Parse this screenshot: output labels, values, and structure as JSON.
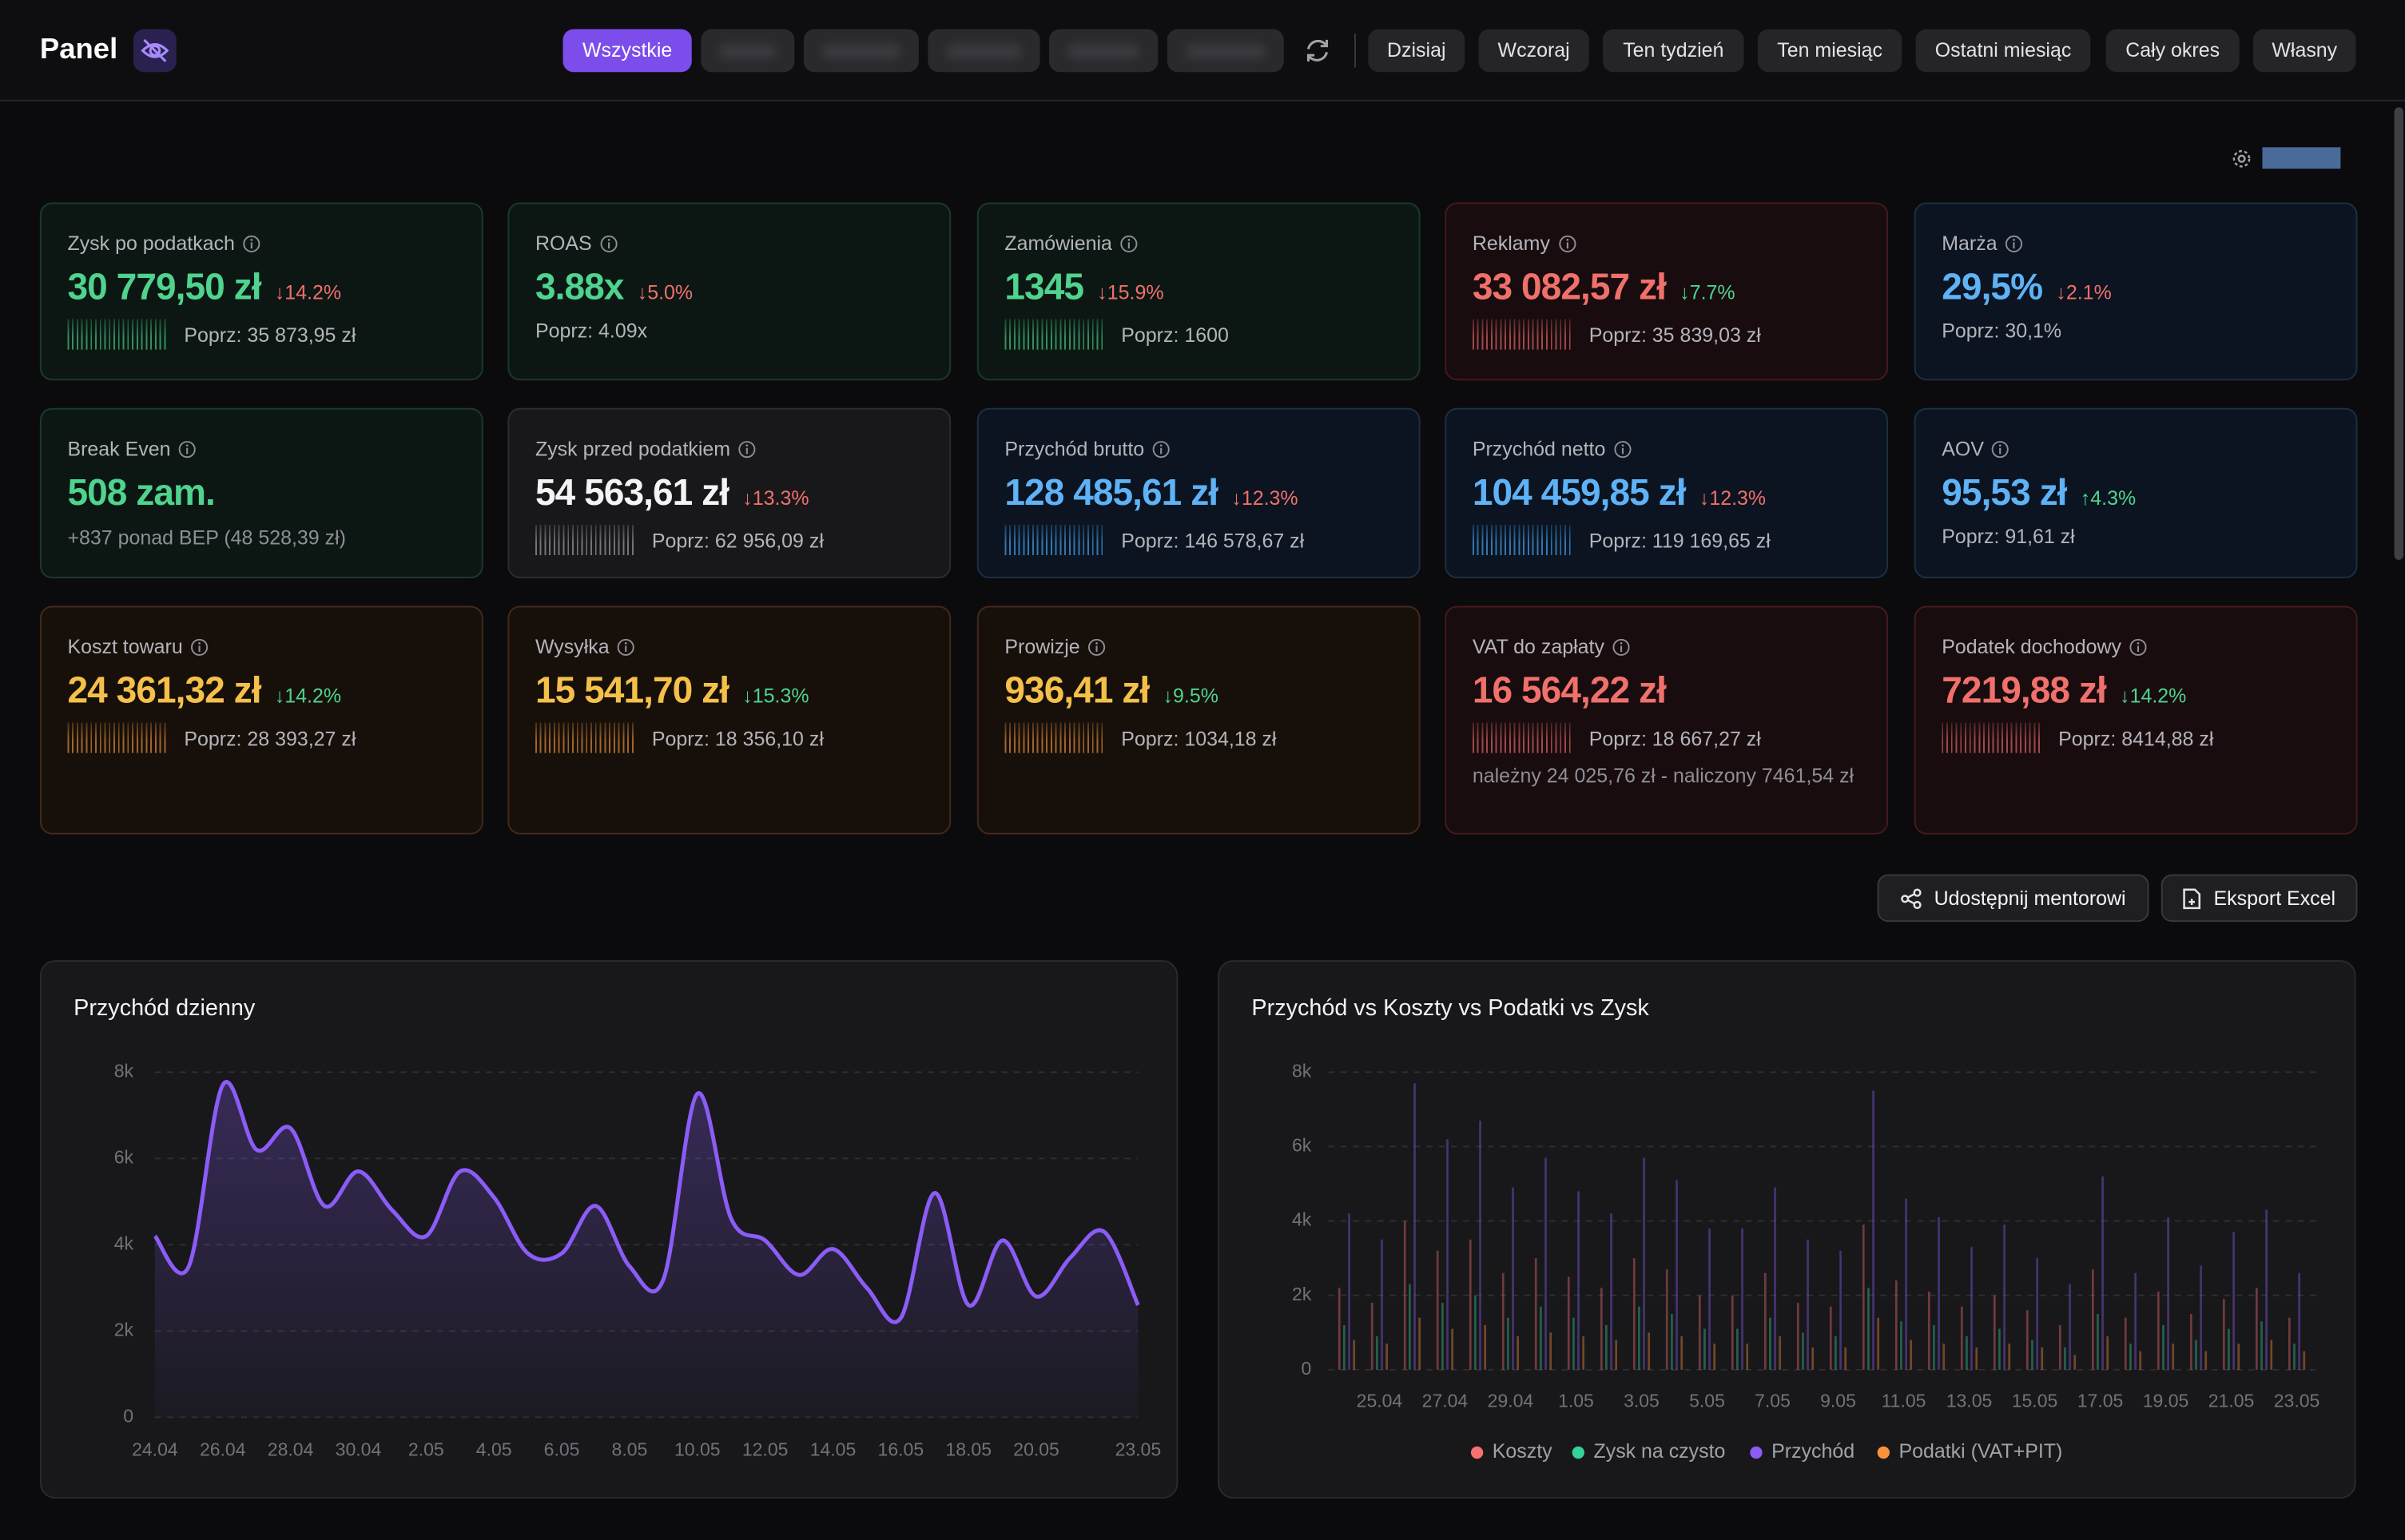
{
  "header": {
    "title": "Panel",
    "tabs": [
      "Wszystkie"
    ],
    "periods": [
      "Dzisiaj",
      "Wczoraj",
      "Ten tydzień",
      "Ten miesiąc",
      "Ostatni miesiąc",
      "Cały okres",
      "Własny"
    ]
  },
  "kpis": [
    {
      "label": "Zysk po podatkach",
      "value": "30 779,50 zł",
      "change": "↓14.2%",
      "previous": "Poprz: 35 873,95 zł"
    },
    {
      "label": "ROAS",
      "value": "3.88x",
      "change": "↓5.0%",
      "previous": "Poprz: 4.09x"
    },
    {
      "label": "Zamówienia",
      "value": "1345",
      "change": "↓15.9%",
      "previous": "Poprz: 1600"
    },
    {
      "label": "Reklamy",
      "value": "33 082,57 zł",
      "change": "↓7.7%",
      "previous": "Poprz: 35 839,03 zł"
    },
    {
      "label": "Marża",
      "value": "29,5%",
      "change": "↓2.1%",
      "previous": "Poprz: 30,1%"
    },
    {
      "label": "Break Even",
      "value": "508 zam.",
      "note": "+837 ponad BEP (48 528,39 zł)"
    },
    {
      "label": "Zysk przed podatkiem",
      "value": "54 563,61 zł",
      "change": "↓13.3%",
      "previous": "Poprz: 62 956,09 zł"
    },
    {
      "label": "Przychód brutto",
      "value": "128 485,61 zł",
      "change": "↓12.3%",
      "previous": "Poprz: 146 578,67 zł"
    },
    {
      "label": "Przychód netto",
      "value": "104 459,85 zł",
      "change": "↓12.3%",
      "previous": "Poprz: 119 169,65 zł"
    },
    {
      "label": "AOV",
      "value": "95,53 zł",
      "change": "↑4.3%",
      "previous": "Poprz: 91,61 zł"
    },
    {
      "label": "Koszt towaru",
      "value": "24 361,32 zł",
      "change": "↓14.2%",
      "previous": "Poprz: 28 393,27 zł"
    },
    {
      "label": "Wysyłka",
      "value": "15 541,70 zł",
      "change": "↓15.3%",
      "previous": "Poprz: 18 356,10 zł"
    },
    {
      "label": "Prowizje",
      "value": "936,41 zł",
      "change": "↓9.5%",
      "previous": "Poprz: 1034,18 zł"
    },
    {
      "label": "VAT do zapłaty",
      "value": "16 564,22 zł",
      "previous": "Poprz: 18 667,27 zł",
      "note": "należny 24 025,76 zł - naliczony 7461,54 zł"
    },
    {
      "label": "Podatek dochodowy",
      "value": "7219,88 zł",
      "change": "↓14.2%",
      "previous": "Poprz: 8414,88 zł"
    }
  ],
  "actions": [
    "Udostępnij mentorowi",
    "Eksport Excel"
  ],
  "chart_data": [
    {
      "type": "line",
      "title": "Przychód dzienny",
      "categories": [
        "24.04",
        null,
        "26.04",
        null,
        "28.04",
        null,
        "30.04",
        null,
        "2.05",
        null,
        "4.05",
        null,
        "6.05",
        null,
        "8.05",
        null,
        "10.05",
        null,
        "12.05",
        null,
        "14.05",
        null,
        "16.05",
        null,
        "18.05",
        null,
        "20.05",
        null,
        null,
        "23.05"
      ],
      "values": [
        4200,
        3500,
        7700,
        6200,
        6700,
        4900,
        5700,
        4800,
        4200,
        5700,
        5100,
        3800,
        3800,
        4900,
        3500,
        3200,
        7500,
        4600,
        4100,
        3300,
        3900,
        3000,
        2300,
        5200,
        2600,
        4100,
        2800,
        3700,
        4300,
        2600
      ],
      "color": "#8b5cf6",
      "ylim": [
        0,
        8000
      ],
      "yticks": [
        0,
        {
          "value": 2000,
          "label": "2k"
        },
        {
          "value": 4000,
          "label": "4k"
        },
        {
          "value": 6000,
          "label": "6k"
        },
        {
          "value": 8000,
          "label": "8k"
        }
      ],
      "grid": true
    },
    {
      "type": "bar",
      "title": "Przychód vs Koszty vs Podatki vs Zysk",
      "categories": [
        null,
        "25.04",
        null,
        "27.04",
        null,
        "29.04",
        null,
        "1.05",
        null,
        "3.05",
        null,
        "5.05",
        null,
        "7.05",
        null,
        "9.05",
        null,
        "11.05",
        null,
        "13.05",
        null,
        "15.05",
        null,
        "17.05",
        null,
        "19.05",
        null,
        "21.05",
        null,
        "23.05"
      ],
      "series": [
        {
          "name": "Koszty",
          "color": "#f87171",
          "values": [
            2200,
            1800,
            4000,
            3200,
            3500,
            2600,
            3000,
            2500,
            2200,
            3000,
            2700,
            2000,
            2000,
            2600,
            1800,
            1700,
            3900,
            2400,
            2100,
            1700,
            2000,
            1600,
            1200,
            2700,
            1400,
            2100,
            1500,
            1900,
            2200,
            1400
          ]
        },
        {
          "name": "Zysk na czysto",
          "color": "#34d399",
          "values": [
            1200,
            900,
            2300,
            1800,
            2000,
            1400,
            1700,
            1400,
            1200,
            1700,
            1500,
            1100,
            1100,
            1400,
            1000,
            900,
            2200,
            1300,
            1200,
            900,
            1100,
            800,
            600,
            1500,
            700,
            1200,
            800,
            1100,
            1300,
            700
          ]
        },
        {
          "name": "Przychód",
          "color": "#8b5cf6",
          "values": [
            4200,
            3500,
            7700,
            6200,
            6700,
            4900,
            5700,
            4800,
            4200,
            5700,
            5100,
            3800,
            3800,
            4900,
            3500,
            3200,
            7500,
            4600,
            4100,
            3300,
            3900,
            3000,
            2300,
            5200,
            2600,
            4100,
            2800,
            3700,
            4300,
            2600
          ]
        },
        {
          "name": "Podatki (VAT+PIT)",
          "color": "#fb923c",
          "values": [
            800,
            700,
            1400,
            1100,
            1200,
            900,
            1000,
            900,
            800,
            1000,
            900,
            700,
            700,
            900,
            600,
            600,
            1400,
            800,
            700,
            600,
            700,
            600,
            400,
            900,
            500,
            700,
            500,
            700,
            800,
            500
          ]
        }
      ],
      "ylim": [
        0,
        8000
      ],
      "yticks": [
        0,
        {
          "value": 2000,
          "label": "2k"
        },
        {
          "value": 4000,
          "label": "4k"
        },
        {
          "value": 6000,
          "label": "6k"
        },
        {
          "value": 8000,
          "label": "8k"
        }
      ],
      "grid": true,
      "legend": "bottom"
    }
  ]
}
